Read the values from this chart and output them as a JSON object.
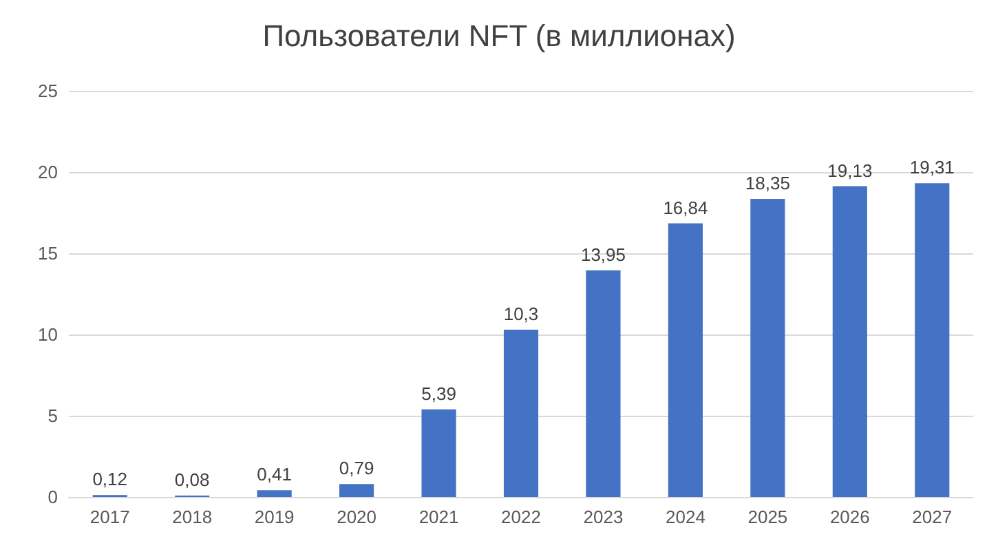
{
  "chart_data": {
    "type": "bar",
    "title": "Пользователи NFT (в миллионах)",
    "categories": [
      "2017",
      "2018",
      "2019",
      "2020",
      "2021",
      "2022",
      "2023",
      "2024",
      "2025",
      "2026",
      "2027"
    ],
    "values": [
      0.12,
      0.08,
      0.41,
      0.79,
      5.39,
      10.3,
      13.95,
      16.84,
      18.35,
      19.13,
      19.31
    ],
    "value_labels": [
      "0,12",
      "0,08",
      "0,41",
      "0,79",
      "5,39",
      "10,3",
      "13,95",
      "16,84",
      "18,35",
      "19,13",
      "19,31"
    ],
    "color": "#4472c4",
    "ylim": [
      0,
      25
    ],
    "yticks": [
      0,
      5,
      10,
      15,
      20,
      25
    ],
    "grid": "y"
  }
}
